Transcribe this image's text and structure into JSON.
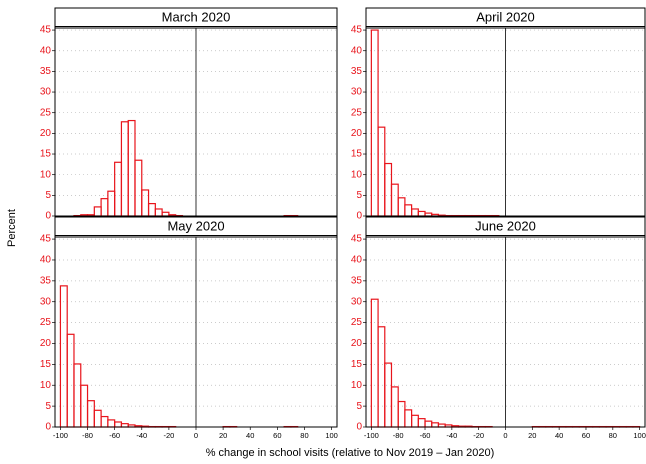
{
  "y_label": "Percent",
  "x_label": "% change in school visits (relative to Nov 2019 – Jan 2020)",
  "chart_data": [
    {
      "type": "histogram",
      "title": "March 2020",
      "color": "#e8141b",
      "vline": 0,
      "bins": [
        -100,
        -95,
        -90,
        -85,
        -80,
        -75,
        -70,
        -65,
        -60,
        -55,
        -50,
        -45,
        -40,
        -35,
        -30,
        -25,
        -20,
        -15,
        -10,
        -5,
        0,
        5,
        10,
        15,
        20,
        25,
        30,
        35,
        40,
        45,
        50,
        55,
        60,
        65,
        70,
        75,
        80,
        85,
        90,
        95,
        100
      ],
      "values": [
        0,
        0,
        0.1,
        0.3,
        0.3,
        2.2,
        4.2,
        6.0,
        13.0,
        22.8,
        23.1,
        13.5,
        6.3,
        3.0,
        1.7,
        0.9,
        0.3,
        0.1,
        0,
        0,
        0,
        0,
        0,
        0,
        0,
        0,
        0,
        0,
        0,
        0,
        0,
        0,
        0,
        0.1,
        0.1,
        0,
        0,
        0,
        0,
        0
      ],
      "xlim": [
        -104,
        104
      ],
      "ylim": [
        0,
        45.5
      ],
      "yticks": [
        0,
        5,
        10,
        15,
        20,
        25,
        30,
        35,
        40,
        45
      ],
      "xticks": []
    },
    {
      "type": "histogram",
      "title": "April 2020",
      "color": "#e8141b",
      "vline": 0,
      "bins": [
        -100,
        -95,
        -90,
        -85,
        -80,
        -75,
        -70,
        -65,
        -60,
        -55,
        -50,
        -45,
        -40,
        -35,
        -30,
        -25,
        -20,
        -15,
        -10,
        -5,
        0,
        5,
        10,
        15,
        20,
        25,
        30,
        35,
        40,
        45,
        50,
        55,
        60,
        65,
        70,
        75,
        80,
        85,
        90,
        95,
        100
      ],
      "values": [
        45,
        21.5,
        12.7,
        7.7,
        4.4,
        2.7,
        1.7,
        1.1,
        0.7,
        0.4,
        0.2,
        0.1,
        0.1,
        0.1,
        0.1,
        0.1,
        0.1,
        0.1,
        0.1,
        0,
        0,
        0,
        0,
        0,
        0,
        0,
        0,
        0,
        0,
        0,
        0,
        0,
        0,
        0,
        0,
        0,
        0,
        0,
        0,
        0
      ],
      "xlim": [
        -104,
        104
      ],
      "ylim": [
        0,
        45.5
      ],
      "yticks": [
        0,
        5,
        10,
        15,
        20,
        25,
        30,
        35,
        40,
        45
      ],
      "xticks": []
    },
    {
      "type": "histogram",
      "title": "May 2020",
      "color": "#e8141b",
      "vline": 0,
      "bins": [
        -100,
        -95,
        -90,
        -85,
        -80,
        -75,
        -70,
        -65,
        -60,
        -55,
        -50,
        -45,
        -40,
        -35,
        -30,
        -25,
        -20,
        -15,
        -10,
        -5,
        0,
        5,
        10,
        15,
        20,
        25,
        30,
        35,
        40,
        45,
        50,
        55,
        60,
        65,
        70,
        75,
        80,
        85,
        90,
        95,
        100
      ],
      "values": [
        33.8,
        22.2,
        15.1,
        10.0,
        6.3,
        4.0,
        2.5,
        1.7,
        1.2,
        0.8,
        0.5,
        0.3,
        0.2,
        0.1,
        0.1,
        0.1,
        0.1,
        0,
        0,
        0,
        0,
        0,
        0,
        0,
        0.1,
        0.1,
        0,
        0,
        0,
        0,
        0,
        0,
        0,
        0.1,
        0.1,
        0,
        0,
        0,
        0,
        0
      ],
      "xlim": [
        -104,
        104
      ],
      "ylim": [
        0,
        45.5
      ],
      "yticks": [
        0,
        5,
        10,
        15,
        20,
        25,
        30,
        35,
        40,
        45
      ],
      "xticks": [
        -100,
        -80,
        -60,
        -40,
        -20,
        0,
        20,
        40,
        60,
        80,
        100
      ]
    },
    {
      "type": "histogram",
      "title": "June 2020",
      "color": "#e8141b",
      "vline": 0,
      "bins": [
        -100,
        -95,
        -90,
        -85,
        -80,
        -75,
        -70,
        -65,
        -60,
        -55,
        -50,
        -45,
        -40,
        -35,
        -30,
        -25,
        -20,
        -15,
        -10,
        -5,
        0,
        5,
        10,
        15,
        20,
        25,
        30,
        35,
        40,
        45,
        50,
        55,
        60,
        65,
        70,
        75,
        80,
        85,
        90,
        95,
        100
      ],
      "values": [
        30.6,
        24.0,
        15.3,
        9.6,
        6.1,
        4.1,
        2.8,
        2.0,
        1.4,
        1.0,
        0.7,
        0.5,
        0.3,
        0.2,
        0.2,
        0.1,
        0.1,
        0.1,
        0,
        0,
        0,
        0,
        0,
        0,
        0.1,
        0.1,
        0.1,
        0.1,
        0.1,
        0.1,
        0.1,
        0.1,
        0.1,
        0.1,
        0.1,
        0.1,
        0.1,
        0.1,
        0.1,
        0.1
      ],
      "xlim": [
        -104,
        104
      ],
      "ylim": [
        0,
        45.5
      ],
      "yticks": [
        0,
        5,
        10,
        15,
        20,
        25,
        30,
        35,
        40,
        45
      ],
      "xticks": [
        -100,
        -80,
        -60,
        -40,
        -20,
        0,
        20,
        40,
        60,
        80,
        100
      ]
    }
  ]
}
